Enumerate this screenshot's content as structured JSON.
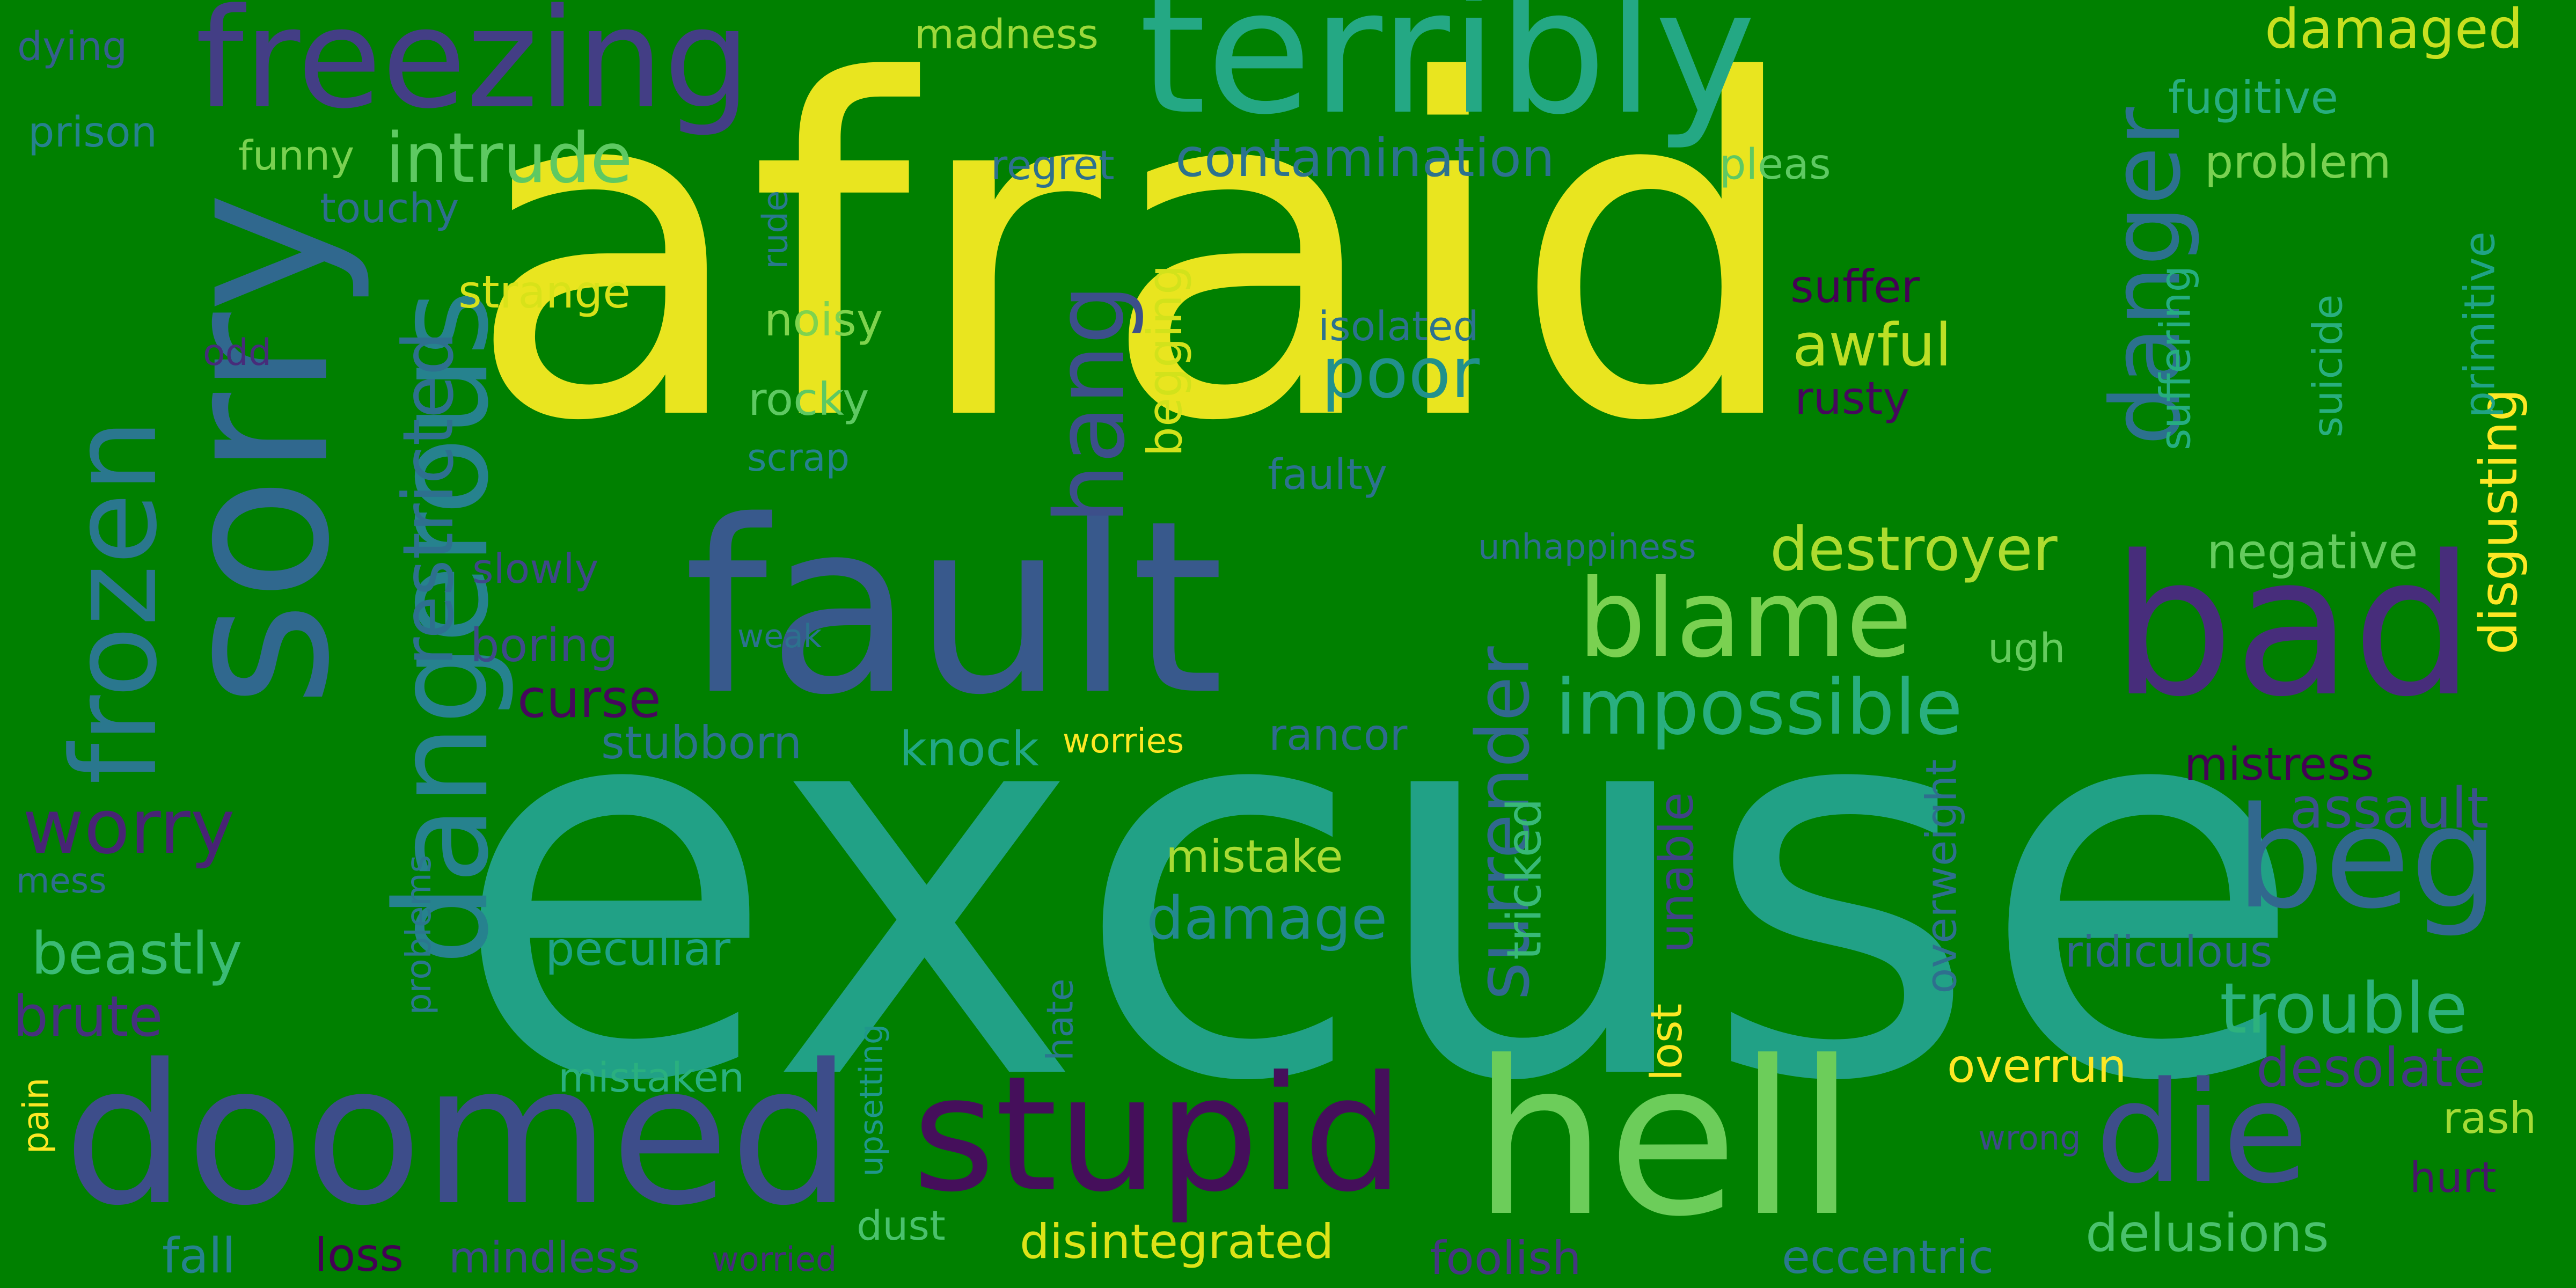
{
  "words": [
    {
      "text": "afraid",
      "color": "#e9e51f"
    },
    {
      "text": "excuse",
      "color": "#21a186"
    },
    {
      "text": "fault",
      "color": "#38598c"
    },
    {
      "text": "sorry",
      "color": "#30688e"
    },
    {
      "text": "terribly",
      "color": "#24a884"
    },
    {
      "text": "freezing",
      "color": "#433e85"
    },
    {
      "text": "doomed",
      "color": "#3d4d8a"
    },
    {
      "text": "hell",
      "color": "#6ccd5a"
    },
    {
      "text": "bad",
      "color": "#472d7b"
    },
    {
      "text": "stupid",
      "color": "#450f5b"
    },
    {
      "text": "dangerous",
      "color": "#26828e"
    },
    {
      "text": "frozen",
      "color": "#2a778e"
    },
    {
      "text": "danger",
      "color": "#2c718e"
    },
    {
      "text": "hang",
      "color": "#3c4f8a"
    },
    {
      "text": "die",
      "color": "#3d4e8a"
    },
    {
      "text": "beg",
      "color": "#31688e"
    },
    {
      "text": "blame",
      "color": "#7ad151"
    },
    {
      "text": "impossible",
      "color": "#29af7f"
    },
    {
      "text": "intrude",
      "color": "#5ec962"
    },
    {
      "text": "restricted",
      "color": "#2d708e"
    },
    {
      "text": "surrender",
      "color": "#31688e"
    },
    {
      "text": "trouble",
      "color": "#2db27d"
    },
    {
      "text": "destroyer",
      "color": "#addc30"
    },
    {
      "text": "worry",
      "color": "#482475"
    },
    {
      "text": "poor",
      "color": "#21918c"
    },
    {
      "text": "damaged",
      "color": "#c8e020"
    },
    {
      "text": "desolate",
      "color": "#443a83"
    },
    {
      "text": "delusions",
      "color": "#4ac16d"
    },
    {
      "text": "disintegrated",
      "color": "#dde318"
    },
    {
      "text": "awful",
      "color": "#bddf26"
    },
    {
      "text": "damage",
      "color": "#23898e"
    },
    {
      "text": "beastly",
      "color": "#3bbb75"
    },
    {
      "text": "assault",
      "color": "#3b528b"
    },
    {
      "text": "disgusting",
      "color": "#fde725"
    },
    {
      "text": "begging",
      "color": "#d2e21b"
    },
    {
      "text": "contamination",
      "color": "#2c728e"
    },
    {
      "text": "overrun",
      "color": "#fde725"
    },
    {
      "text": "mistress",
      "color": "#440154"
    },
    {
      "text": "brute",
      "color": "#46317e"
    },
    {
      "text": "curse",
      "color": "#46085c"
    },
    {
      "text": "tricked",
      "color": "#38b977"
    },
    {
      "text": "unable",
      "color": "#404387"
    },
    {
      "text": "negative",
      "color": "#65cb5e"
    },
    {
      "text": "peculiar",
      "color": "#1fa287"
    },
    {
      "text": "knock",
      "color": "#22a785"
    },
    {
      "text": "mistake",
      "color": "#a8db34"
    },
    {
      "text": "ridiculous",
      "color": "#31688e"
    },
    {
      "text": "problem",
      "color": "#7ad151"
    },
    {
      "text": "fugitive",
      "color": "#28ae80"
    },
    {
      "text": "suffer",
      "color": "#440154"
    },
    {
      "text": "rusty",
      "color": "#46085c"
    },
    {
      "text": "lost",
      "color": "#fde725"
    },
    {
      "text": "foolish",
      "color": "#453781"
    },
    {
      "text": "eccentric",
      "color": "#2a788e"
    },
    {
      "text": "strange",
      "color": "#d8e219"
    },
    {
      "text": "rocky",
      "color": "#5ec962"
    },
    {
      "text": "noisy",
      "color": "#7fd34e"
    },
    {
      "text": "boring",
      "color": "#3e4a89"
    },
    {
      "text": "primitive",
      "color": "#20a386"
    },
    {
      "text": "suffering",
      "color": "#26ad81"
    },
    {
      "text": "suicide",
      "color": "#29af7f"
    },
    {
      "text": "overweight",
      "color": "#2e6f8e"
    },
    {
      "text": "stubborn",
      "color": "#2c728e"
    },
    {
      "text": "rancor",
      "color": "#2f6b8e"
    },
    {
      "text": "rash",
      "color": "#a5db36"
    },
    {
      "text": "hurt",
      "color": "#481769"
    },
    {
      "text": "mindless",
      "color": "#3e4989"
    },
    {
      "text": "regret",
      "color": "#2d708e"
    },
    {
      "text": "pleas",
      "color": "#5ec962"
    },
    {
      "text": "madness",
      "color": "#9dd93b"
    },
    {
      "text": "mistaken",
      "color": "#2ab07f"
    },
    {
      "text": "fall",
      "color": "#26828e"
    },
    {
      "text": "loss",
      "color": "#440154"
    },
    {
      "text": "dust",
      "color": "#4ac16d"
    },
    {
      "text": "slowly",
      "color": "#3f4889"
    },
    {
      "text": "isolated",
      "color": "#2c728e"
    },
    {
      "text": "faulty",
      "color": "#2c728e"
    },
    {
      "text": "ugh",
      "color": "#65cb5e"
    },
    {
      "text": "funny",
      "color": "#7ad151"
    },
    {
      "text": "touchy",
      "color": "#2e6e8e"
    },
    {
      "text": "prison",
      "color": "#26828e"
    },
    {
      "text": "dying",
      "color": "#355f8d"
    },
    {
      "text": "odd",
      "color": "#472c7a"
    },
    {
      "text": "scrap",
      "color": "#26828e"
    },
    {
      "text": "rude",
      "color": "#29798e"
    },
    {
      "text": "problems",
      "color": "#2a778e"
    },
    {
      "text": "hate",
      "color": "#2a778e"
    },
    {
      "text": "upsetting",
      "color": "#1f978b"
    },
    {
      "text": "unhappiness",
      "color": "#2e6e8e"
    },
    {
      "text": "weak",
      "color": "#2c728e"
    },
    {
      "text": "worries",
      "color": "#fde725"
    },
    {
      "text": "wrong",
      "color": "#3e4a89"
    },
    {
      "text": "worried",
      "color": "#472d7b"
    },
    {
      "text": "mess",
      "color": "#2e6e8e"
    },
    {
      "text": "pain",
      "color": "#fde725"
    }
  ]
}
